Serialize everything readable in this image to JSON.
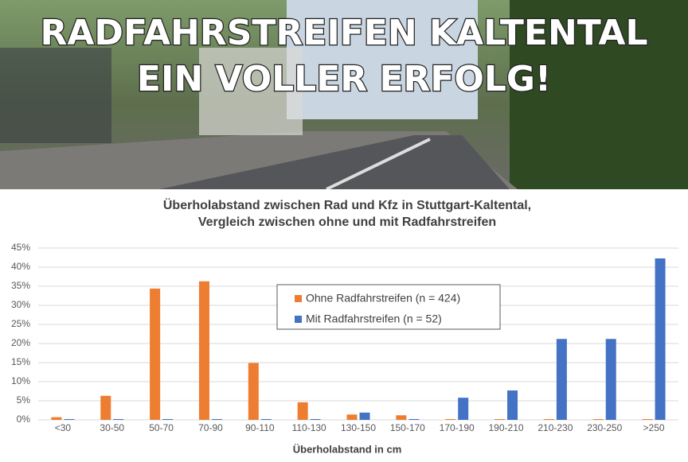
{
  "banner": {
    "lines": [
      "RADFAHRSTREIFEN KALTENTAL",
      "EIN VOLLER ERFOLG!"
    ]
  },
  "chart_data": {
    "type": "bar",
    "title": [
      "Überholabstand zwischen Rad und Kfz in Stuttgart-Kaltental,",
      "Vergleich zwischen ohne und mit Radfahrstreifen"
    ],
    "x_label": "Überholabstand in cm",
    "categories": [
      "<30",
      "30-50",
      "50-70",
      "70-90",
      "90-110",
      "110-130",
      "130-150",
      "150-170",
      "170-190",
      "190-210",
      "210-230",
      "230-250",
      ">250"
    ],
    "series": [
      {
        "name": "Ohne Radfahrstreifen (n = 424)",
        "color": "#ed7d31",
        "values": [
          0.7,
          6.3,
          34.4,
          36.3,
          14.9,
          4.6,
          1.4,
          1.2,
          0,
          0,
          0,
          0,
          0
        ]
      },
      {
        "name": "Mit Radfahrstreifen (n = 52)",
        "color": "#4472c4",
        "values": [
          0,
          0,
          0,
          0,
          0,
          0,
          1.9,
          0,
          5.8,
          7.7,
          21.2,
          21.2,
          42.3
        ]
      }
    ],
    "ylim": [
      0,
      45
    ],
    "yticks": [
      {
        "value": 0,
        "label": "0%"
      },
      {
        "value": 5,
        "label": "5%"
      },
      {
        "value": 10,
        "label": "10%"
      },
      {
        "value": 15,
        "label": "15%"
      },
      {
        "value": 20,
        "label": "20%"
      },
      {
        "value": 25,
        "label": "25%"
      },
      {
        "value": 30,
        "label": "30%"
      },
      {
        "value": 35,
        "label": "35%"
      },
      {
        "value": 40,
        "label": "40%"
      },
      {
        "value": 45,
        "label": "45%"
      }
    ],
    "grid": true,
    "legend": "center"
  }
}
